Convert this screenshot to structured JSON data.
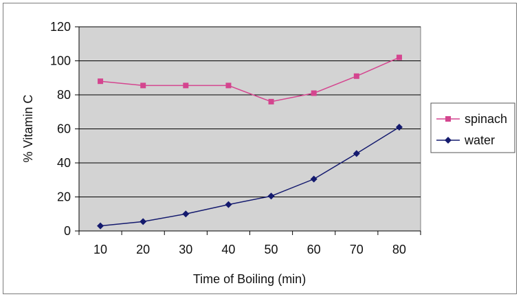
{
  "chart_data": {
    "type": "line",
    "title": "",
    "xlabel": "Time of Boiling (min)",
    "ylabel": "% Vitamin C",
    "categories": [
      "10",
      "20",
      "30",
      "40",
      "50",
      "60",
      "70",
      "80"
    ],
    "ylim": [
      0,
      120
    ],
    "yticks": [
      "0",
      "20",
      "40",
      "60",
      "80",
      "100",
      "120"
    ],
    "grid": true,
    "legend_position": "right",
    "plot_background": "#d3d3d3",
    "series": [
      {
        "name": "spinach",
        "values": [
          88,
          85.5,
          85.5,
          85.5,
          76,
          81,
          91,
          102
        ],
        "color": "#d4458f",
        "marker": "square"
      },
      {
        "name": "water",
        "values": [
          3,
          5.5,
          10,
          15.5,
          20.5,
          30.5,
          45.5,
          61
        ],
        "color": "#141a6e",
        "marker": "diamond"
      }
    ]
  }
}
